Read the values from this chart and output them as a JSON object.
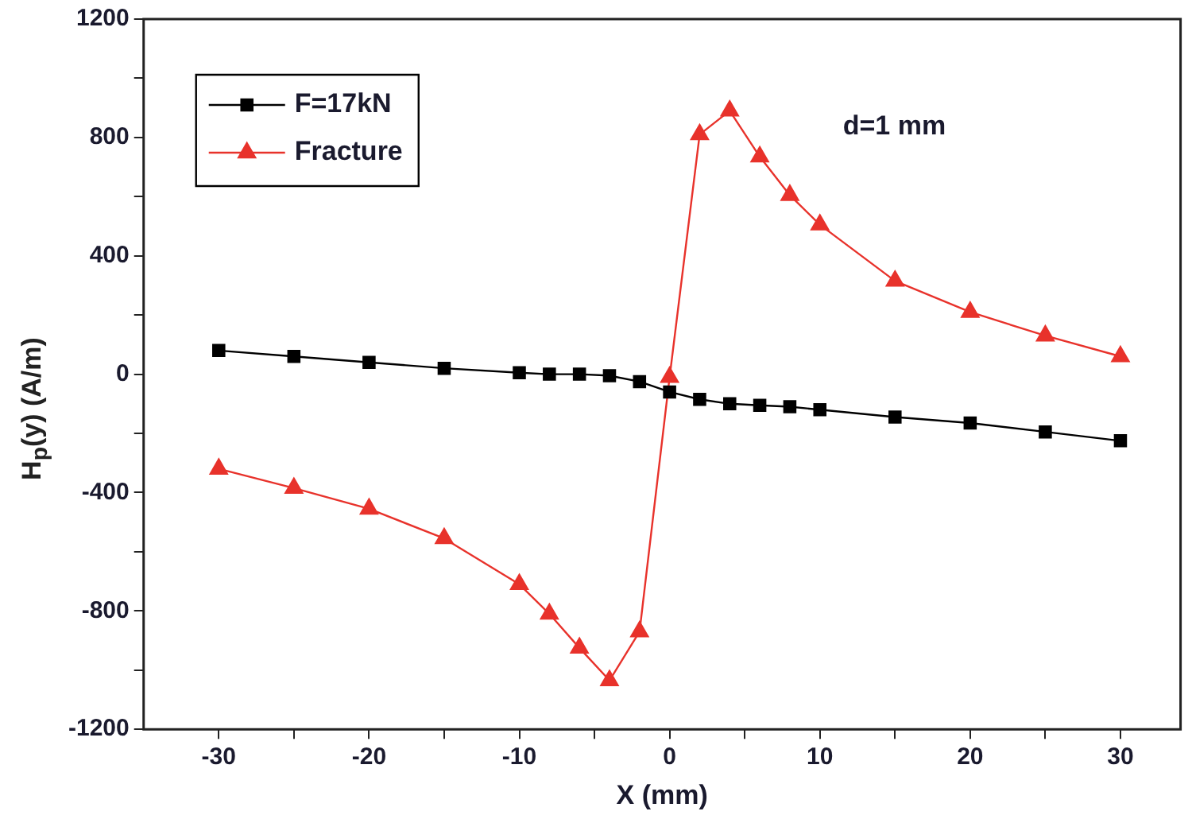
{
  "chart_data": {
    "type": "line",
    "xlabel": "X (mm)",
    "ylabel": "H$_{p}$(y) (A/m)",
    "annotations": [
      "d=1 mm"
    ],
    "x": [
      -30,
      -25,
      -20,
      -15,
      -10,
      -8,
      -6,
      -4,
      -2,
      0,
      2,
      4,
      6,
      8,
      10,
      15,
      20,
      25,
      30
    ],
    "series": [
      {
        "name": "F=17kN",
        "color": "#000000",
        "marker": "square",
        "values": [
          80,
          60,
          40,
          20,
          5,
          0,
          0,
          -5,
          -25,
          -60,
          -85,
          -100,
          -105,
          -110,
          -120,
          -145,
          -165,
          -195,
          -225
        ]
      },
      {
        "name": "Fracture",
        "color": "#e8322b",
        "marker": "triangle",
        "values": [
          -320,
          -385,
          -455,
          -555,
          -710,
          -810,
          -925,
          -1035,
          -870,
          -10,
          810,
          890,
          735,
          605,
          505,
          315,
          210,
          130,
          60
        ]
      }
    ],
    "xlim": [
      -35,
      34
    ],
    "xticks": [
      -30,
      {
        "value": -25,
        "label": null
      },
      -20,
      {
        "value": -15,
        "label": null
      },
      -10,
      {
        "value": -5,
        "label": null
      },
      0,
      {
        "value": 5,
        "label": null
      },
      10,
      {
        "value": 15,
        "label": null
      },
      20,
      {
        "value": 25,
        "label": null
      },
      30
    ],
    "ylim": [
      -1200,
      1200
    ],
    "yticks": [
      -1200,
      {
        "value": -1000,
        "label": null
      },
      -800,
      {
        "value": -600,
        "label": null
      },
      -400,
      {
        "value": -200,
        "label": null
      },
      0,
      {
        "value": 200,
        "label": null
      },
      400,
      {
        "value": 600,
        "label": null
      },
      800,
      {
        "value": 1000,
        "label": null
      },
      1200
    ],
    "grid": false,
    "legend": "top left"
  }
}
